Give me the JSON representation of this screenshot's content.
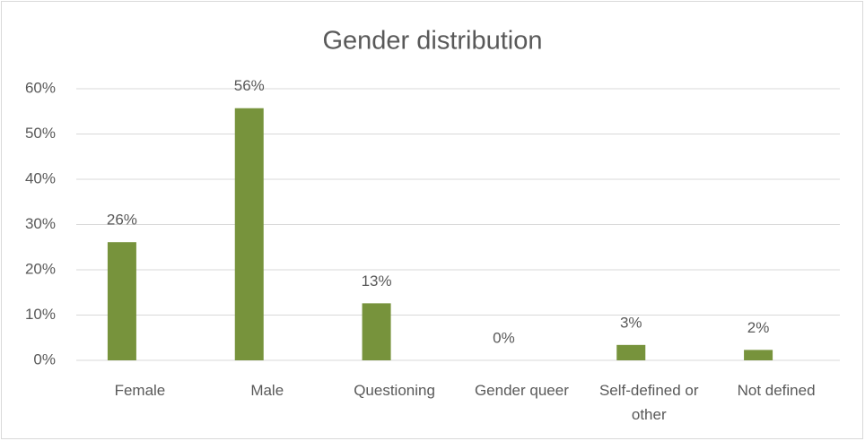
{
  "chart_data": {
    "type": "bar",
    "title": "Gender distribution",
    "categories": [
      "Female",
      "Male",
      "Questioning",
      "Gender queer",
      "Self-defined or other",
      "Not defined"
    ],
    "values": [
      26.1,
      55.7,
      12.6,
      0,
      3.4,
      2.3
    ],
    "value_labels": [
      "26%",
      "56%",
      "13%",
      "0%",
      "3%",
      "2%"
    ],
    "color": "#77933c",
    "ylim": [
      0,
      60
    ],
    "yticks": [
      {
        "value": 0,
        "label": "0%"
      },
      {
        "value": 10,
        "label": "10%"
      },
      {
        "value": 20,
        "label": "20%"
      },
      {
        "value": 30,
        "label": "30%"
      },
      {
        "value": 40,
        "label": "40%"
      },
      {
        "value": 50,
        "label": "50%"
      },
      {
        "value": 60,
        "label": "60%"
      }
    ],
    "grid": true
  }
}
